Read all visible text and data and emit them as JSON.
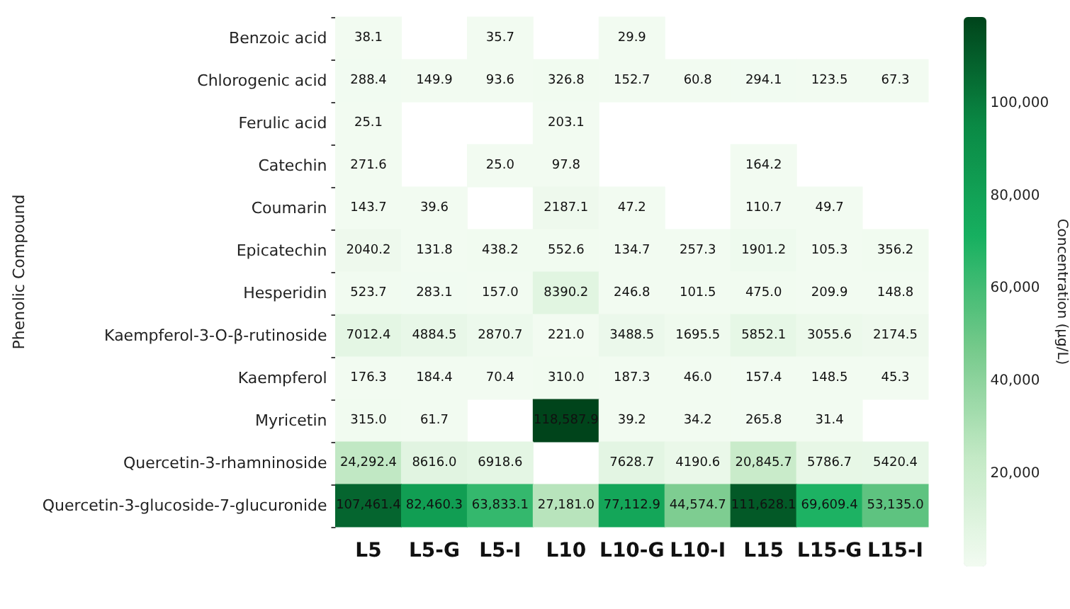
{
  "chart_data": {
    "type": "heatmap",
    "ylabel": "Phenolic Compound",
    "clabel": "Concentration (µg/L)",
    "categories": [
      "L5",
      "L5-G",
      "L5-I",
      "L10",
      "L10-G",
      "L10-I",
      "L15",
      "L15-G",
      "L15-I"
    ],
    "y_categories": [
      "Benzoic acid",
      "Chlorogenic acid",
      "Ferulic acid",
      "Catechin",
      "Coumarin",
      "Epicatechin",
      "Hesperidin",
      "Kaempferol-3-O-β-rutinoside",
      "Kaempferol",
      "Myricetin",
      "Quercetin-3-rhamninoside",
      "Quercetin-3-glucoside-7-glucuronide"
    ],
    "cells": [
      [
        38.1,
        null,
        35.7,
        null,
        29.9,
        null,
        null,
        null,
        null
      ],
      [
        288.4,
        149.9,
        93.6,
        326.8,
        152.7,
        60.8,
        294.1,
        123.5,
        67.3
      ],
      [
        25.1,
        null,
        null,
        203.1,
        null,
        null,
        null,
        null,
        null
      ],
      [
        271.6,
        null,
        25.0,
        97.8,
        null,
        null,
        164.2,
        null,
        null
      ],
      [
        143.7,
        39.6,
        null,
        2187.1,
        47.2,
        null,
        110.7,
        49.7,
        null
      ],
      [
        2040.2,
        131.8,
        438.2,
        552.6,
        134.7,
        257.3,
        1901.2,
        105.3,
        356.2
      ],
      [
        523.7,
        283.1,
        157.0,
        8390.2,
        246.8,
        101.5,
        475.0,
        209.9,
        148.8
      ],
      [
        7012.4,
        4884.5,
        2870.7,
        221.0,
        3488.5,
        1695.5,
        5852.1,
        3055.6,
        2174.5
      ],
      [
        176.3,
        184.4,
        70.4,
        310.0,
        187.3,
        46.0,
        157.4,
        148.5,
        45.3
      ],
      [
        315.0,
        61.7,
        null,
        118587.9,
        39.2,
        34.2,
        265.8,
        31.4,
        null
      ],
      [
        24292.4,
        8616.0,
        6918.6,
        null,
        7628.7,
        4190.6,
        20845.7,
        5786.7,
        5420.4
      ],
      [
        107461.4,
        82460.3,
        63833.1,
        27181.0,
        77112.9,
        44574.7,
        111628.1,
        69609.4,
        53135.0
      ]
    ],
    "cell_labels": [
      [
        "38.1",
        null,
        "35.7",
        null,
        "29.9",
        null,
        null,
        null,
        null
      ],
      [
        "288.4",
        "149.9",
        "93.6",
        "326.8",
        "152.7",
        "60.8",
        "294.1",
        "123.5",
        "67.3"
      ],
      [
        "25.1",
        null,
        null,
        "203.1",
        null,
        null,
        null,
        null,
        null
      ],
      [
        "271.6",
        null,
        "25.0",
        "97.8",
        null,
        null,
        "164.2",
        null,
        null
      ],
      [
        "143.7",
        "39.6",
        null,
        "2187.1",
        "47.2",
        null,
        "110.7",
        "49.7",
        null
      ],
      [
        "2040.2",
        "131.8",
        "438.2",
        "552.6",
        "134.7",
        "257.3",
        "1901.2",
        "105.3",
        "356.2"
      ],
      [
        "523.7",
        "283.1",
        "157.0",
        "8390.2",
        "246.8",
        "101.5",
        "475.0",
        "209.9",
        "148.8"
      ],
      [
        "7012.4",
        "4884.5",
        "2870.7",
        "221.0",
        "3488.5",
        "1695.5",
        "5852.1",
        "3055.6",
        "2174.5"
      ],
      [
        "176.3",
        "184.4",
        "70.4",
        "310.0",
        "187.3",
        "46.0",
        "157.4",
        "148.5",
        "45.3"
      ],
      [
        "315.0",
        "61.7",
        null,
        "118,587.9",
        "39.2",
        "34.2",
        "265.8",
        "31.4",
        null
      ],
      [
        "24,292.4",
        "8616.0",
        "6918.6",
        null,
        "7628.7",
        "4190.6",
        "20,845.7",
        "5786.7",
        "5420.4"
      ],
      [
        "107,461.4",
        "82,460.3",
        "63,833.1",
        "27,181.0",
        "77,112.9",
        "44,574.7",
        "111,628.1",
        "69,609.4",
        "53,135.0"
      ]
    ],
    "clim": [
      25.0,
      118587.9
    ],
    "cticks": [
      {
        "value": 20000,
        "label": "20,000"
      },
      {
        "value": 40000,
        "label": "40,000"
      },
      {
        "value": 60000,
        "label": "60,000"
      },
      {
        "value": 80000,
        "label": "80,000"
      },
      {
        "value": 100000,
        "label": "100,000"
      }
    ]
  }
}
